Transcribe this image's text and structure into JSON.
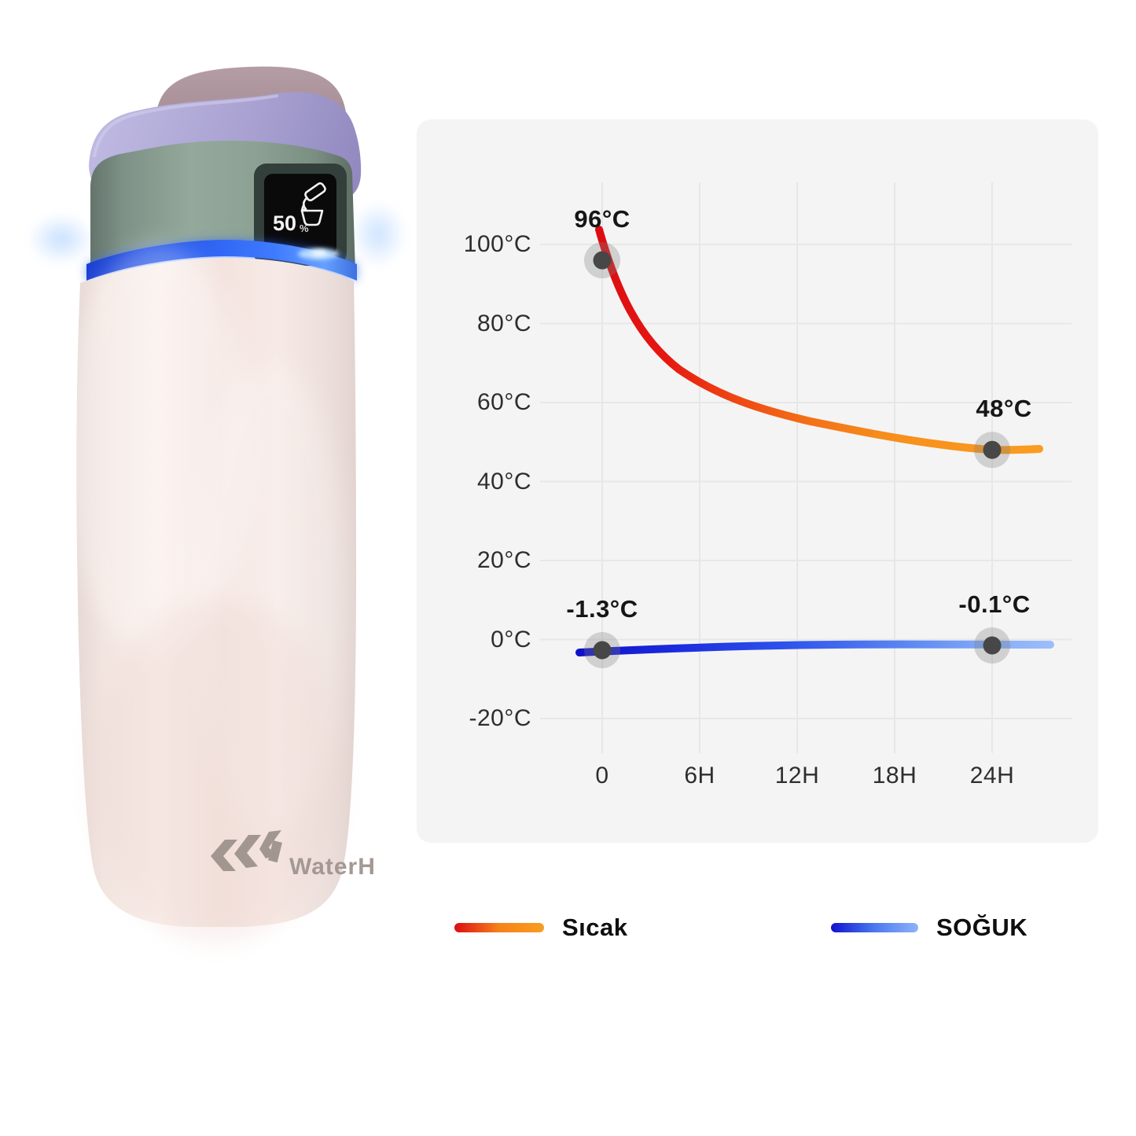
{
  "page": {
    "background": "#ffffff"
  },
  "bottle": {
    "screen": {
      "value": "50",
      "unit": "%",
      "icon": "pour-water-icon"
    },
    "logo_text": "WaterH",
    "led_ring_color": "#2e63f2",
    "colors": {
      "lid": "#a28a92",
      "handle": "#aca6d2",
      "collar": "#8ba092",
      "body": "#f4e8e3",
      "logo": "#a39893"
    }
  },
  "chart_data": {
    "type": "line",
    "title": "",
    "xlabel": "",
    "ylabel": "",
    "grid": true,
    "legend_position": "bottom",
    "x_ticks": [
      "0",
      "6H",
      "12H",
      "18H",
      "24H"
    ],
    "x_tick_hours": [
      0,
      6,
      12,
      18,
      24
    ],
    "y_ticks": [
      "100°C",
      "80°C",
      "60°C",
      "40°C",
      "20°C",
      "0°C",
      "-20°C"
    ],
    "y_tick_values": [
      100,
      80,
      60,
      40,
      20,
      0,
      -20
    ],
    "ylim": [
      -20,
      100
    ],
    "xlim_hours": [
      0,
      24
    ],
    "series": [
      {
        "name": "Sıcak",
        "kind": "hot",
        "gradient": [
          "#dc0d12",
          "#f99d20"
        ],
        "points": [
          {
            "t": 0,
            "value": 96,
            "label": "96°C"
          },
          {
            "t": 24,
            "value": 48,
            "label": "48°C"
          }
        ]
      },
      {
        "name": "SOĞUK",
        "kind": "cold",
        "gradient": [
          "#0f11c8",
          "#9cbdfa"
        ],
        "points": [
          {
            "t": 0,
            "value": -1.3,
            "label": "-1.3°C"
          },
          {
            "t": 24,
            "value": -0.1,
            "label": "-0.1°C"
          }
        ]
      }
    ]
  },
  "legend": {
    "items": [
      {
        "label": "Sıcak",
        "colors": [
          "#dc0d12",
          "#f5821a",
          "#f99d20"
        ]
      },
      {
        "label": "SOĞUK",
        "colors": [
          "#1113cd",
          "#4a79f0",
          "#8fb3f8"
        ]
      }
    ]
  }
}
